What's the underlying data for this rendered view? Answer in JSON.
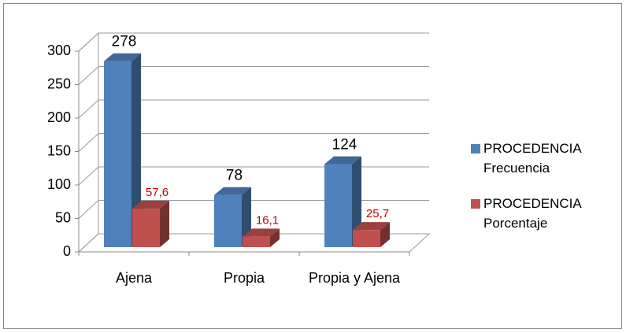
{
  "chart_data": {
    "type": "bar3d",
    "categories": [
      "Ajena",
      "Propia",
      "Propia y Ajena"
    ],
    "series": [
      {
        "name": "PROCEDENCIA Frecuencia",
        "color": "#4f81bd",
        "values": [
          278,
          78,
          124
        ]
      },
      {
        "name": "PROCEDENCIA Porcentaje",
        "color": "#c0504d",
        "values": [
          57.6,
          16.1,
          25.7
        ],
        "value_labels": [
          "57,6",
          "16,1",
          "25,7"
        ]
      }
    ],
    "ylim": [
      0,
      300
    ],
    "yticks": [
      0,
      50,
      100,
      150,
      200,
      250,
      300
    ],
    "grid": true,
    "legend": "right"
  }
}
